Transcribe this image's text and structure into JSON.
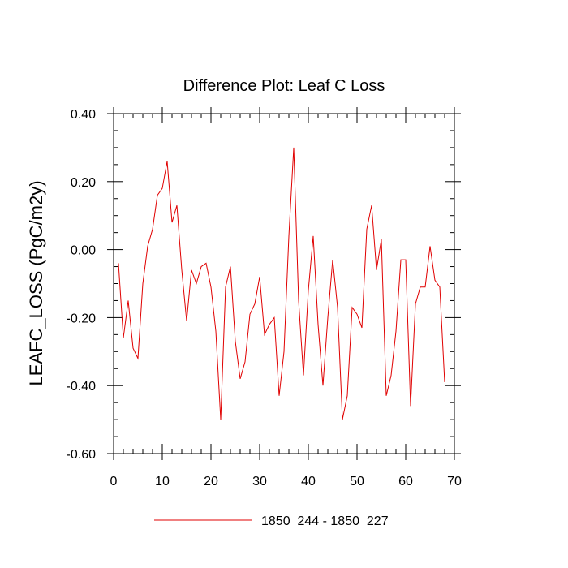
{
  "chart_data": {
    "type": "line",
    "title": "Difference Plot: Leaf C Loss",
    "xlabel": "",
    "ylabel": "LEAFC_LOSS  (PgC/m2y)",
    "xlim": [
      0,
      70
    ],
    "ylim": [
      -0.6,
      0.4
    ],
    "x_ticks": [
      0,
      10,
      20,
      30,
      40,
      50,
      60,
      70
    ],
    "x_tick_labels": [
      "0",
      "10",
      "20",
      "30",
      "40",
      "50",
      "60",
      "70"
    ],
    "y_ticks": [
      -0.6,
      -0.4,
      -0.2,
      0.0,
      0.2,
      0.4
    ],
    "y_tick_labels": [
      "-0.60",
      "-0.40",
      "-0.20",
      "0.00",
      "0.20",
      "0.40"
    ],
    "grid": false,
    "legend_position": "bottom-center",
    "series": [
      {
        "name": "1850_244 - 1850_227",
        "color": "#e00000",
        "x": [
          1,
          2,
          3,
          4,
          5,
          6,
          7,
          8,
          9,
          10,
          11,
          12,
          13,
          14,
          15,
          16,
          17,
          18,
          19,
          20,
          21,
          22,
          23,
          24,
          25,
          26,
          27,
          28,
          29,
          30,
          31,
          32,
          33,
          34,
          35,
          36,
          37,
          38,
          39,
          40,
          41,
          42,
          43,
          44,
          45,
          46,
          47,
          48,
          49,
          50,
          51,
          52,
          53,
          54,
          55,
          56,
          57,
          58,
          59,
          60,
          61,
          62,
          63,
          64,
          65,
          66,
          67,
          68
        ],
        "values": [
          -0.04,
          -0.26,
          -0.15,
          -0.29,
          -0.32,
          -0.1,
          0.01,
          0.06,
          0.16,
          0.18,
          0.26,
          0.08,
          0.13,
          -0.06,
          -0.21,
          -0.06,
          -0.1,
          -0.05,
          -0.04,
          -0.11,
          -0.24,
          -0.5,
          -0.11,
          -0.05,
          -0.27,
          -0.38,
          -0.33,
          -0.19,
          -0.16,
          -0.08,
          -0.25,
          -0.22,
          -0.2,
          -0.43,
          -0.3,
          0.04,
          0.3,
          -0.15,
          -0.37,
          -0.12,
          0.04,
          -0.22,
          -0.4,
          -0.2,
          -0.03,
          -0.17,
          -0.5,
          -0.43,
          -0.17,
          -0.19,
          -0.23,
          0.06,
          0.13,
          -0.06,
          0.03,
          -0.43,
          -0.37,
          -0.24,
          -0.03,
          -0.03,
          -0.46,
          -0.16,
          -0.11,
          -0.11,
          0.01,
          -0.09,
          -0.11,
          -0.39
        ]
      }
    ]
  }
}
